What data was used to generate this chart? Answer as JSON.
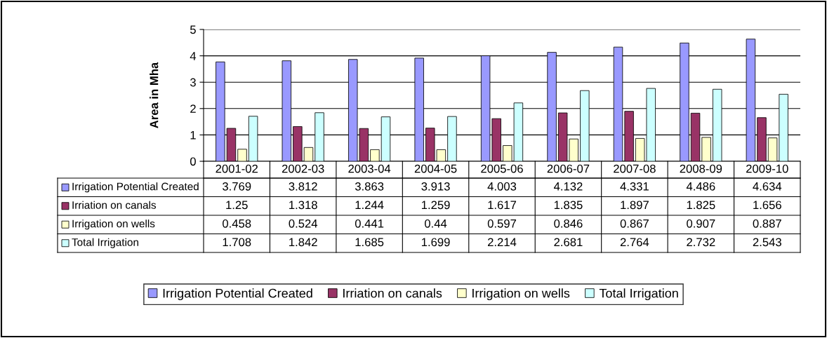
{
  "chart_data": {
    "type": "bar",
    "ylabel": "Area in Mha",
    "categories": [
      "2001-02",
      "2002-03",
      "2003-04",
      "2004-05",
      "2005-06",
      "2006-07",
      "2007-08",
      "2008-09",
      "2009-10"
    ],
    "series": [
      {
        "name": "Irrigation Potential Created",
        "color": "#9999ff",
        "values": [
          3.769,
          3.812,
          3.863,
          3.913,
          4.003,
          4.132,
          4.331,
          4.486,
          4.634
        ]
      },
      {
        "name": "Irriation on canals",
        "color": "#993366",
        "values": [
          1.25,
          1.318,
          1.244,
          1.259,
          1.617,
          1.835,
          1.897,
          1.825,
          1.656
        ]
      },
      {
        "name": "Irrigation on wells",
        "color": "#ffffcc",
        "values": [
          0.458,
          0.524,
          0.441,
          0.44,
          0.597,
          0.846,
          0.867,
          0.907,
          0.887
        ]
      },
      {
        "name": "Total Irrigation",
        "color": "#ccffff",
        "values": [
          1.708,
          1.842,
          1.685,
          1.699,
          2.214,
          2.681,
          2.764,
          2.732,
          2.543
        ]
      }
    ],
    "ylim": [
      0,
      5
    ],
    "yticks": [
      0,
      1,
      2,
      3,
      4,
      5
    ],
    "grid": "y",
    "legend": "bottom",
    "data_labels": true
  }
}
